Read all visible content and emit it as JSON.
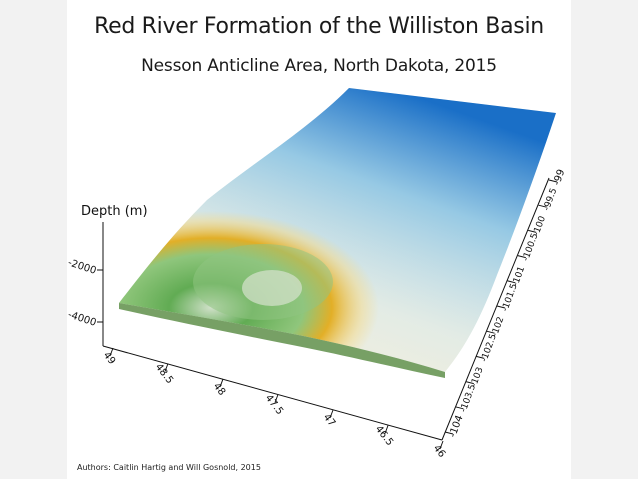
{
  "title": "Red River Formation of the Williston Basin",
  "subtitle": "Nesson Anticline Area, North Dakota, 2015",
  "credit": "Authors: Caitlin Hartig and Will Gosnold, 2015",
  "colors": {
    "deep": "#4f9e44",
    "mid_green": "#9bc98a",
    "gold": "#e6ad1a",
    "pale": "#f0ecd8",
    "light_blue": "#bfe0ee",
    "blue": "#1c73c9"
  },
  "chart_data": {
    "type": "surface3d",
    "title": "Red River Formation of the Williston Basin",
    "subtitle": "Nesson Anticline Area, North Dakota, 2015",
    "zlabel": "Depth (m)",
    "z_ticks": [
      "-2000",
      "-4000"
    ],
    "x_ticks": [
      "49",
      "48.5",
      "48",
      "47.5",
      "47",
      "46.5",
      "46"
    ],
    "y_ticks": [
      "-104",
      "-103.5",
      "-103",
      "-102.5",
      "-102",
      "-101.5",
      "-101",
      "-100.5",
      "-100",
      "-99.5",
      "-99"
    ],
    "colorscale": [
      "deep",
      "mid_green",
      "gold",
      "pale",
      "light_blue",
      "blue"
    ]
  }
}
